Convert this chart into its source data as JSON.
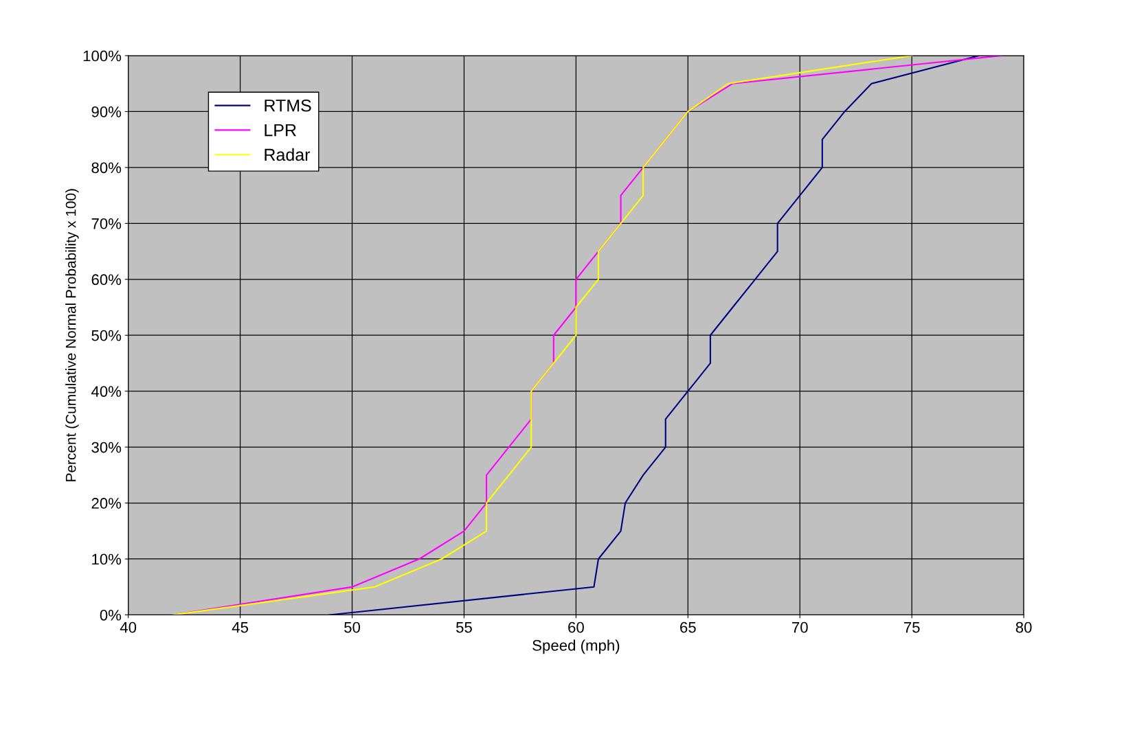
{
  "chart_data": {
    "type": "line",
    "xlabel": "Speed (mph)",
    "ylabel": "Percent (Cumulative Normal Probability x 100)",
    "series": [
      {
        "name": "RTMS",
        "color": "#000080",
        "x": [
          49,
          60.8,
          61,
          62,
          62.2,
          63,
          64,
          64,
          65,
          66,
          66,
          67,
          68,
          69,
          69,
          70,
          71,
          71,
          72,
          73.2,
          78
        ],
        "values": [
          0,
          5,
          10,
          15,
          20,
          25,
          30,
          35,
          40,
          45,
          50,
          55,
          60,
          65,
          70,
          75,
          80,
          85,
          90,
          95,
          100
        ]
      },
      {
        "name": "LPR",
        "color": "#ff00ff",
        "x": [
          42,
          50,
          53,
          55,
          56,
          56,
          57,
          58,
          58,
          59,
          59,
          60,
          60,
          61,
          62,
          62,
          63,
          64,
          65,
          67,
          79
        ],
        "values": [
          0,
          5,
          10,
          15,
          20,
          25,
          30,
          35,
          40,
          45,
          50,
          55,
          60,
          65,
          70,
          75,
          80,
          85,
          90,
          95,
          100
        ]
      },
      {
        "name": "Radar",
        "color": "#ffff00",
        "x": [
          42,
          51,
          54,
          56,
          56,
          57,
          58,
          58,
          59,
          60,
          60,
          61,
          61,
          62,
          63,
          63,
          64,
          65,
          66.8,
          75
        ],
        "values": [
          0,
          5,
          10,
          15,
          20,
          25,
          30,
          40,
          45,
          50,
          55,
          60,
          65,
          70,
          75,
          80,
          85,
          90,
          95,
          100
        ]
      }
    ],
    "xlim": [
      40,
      80
    ],
    "xticks": [
      40,
      45,
      50,
      55,
      60,
      65,
      70,
      75,
      80
    ],
    "ylim": [
      0,
      100
    ],
    "yticks": [
      {
        "value": 0,
        "label": "0%"
      },
      {
        "value": 10,
        "label": "10%"
      },
      {
        "value": 20,
        "label": "20%"
      },
      {
        "value": 30,
        "label": "30%"
      },
      {
        "value": 40,
        "label": "40%"
      },
      {
        "value": 50,
        "label": "50%"
      },
      {
        "value": 60,
        "label": "60%"
      },
      {
        "value": 70,
        "label": "70%"
      },
      {
        "value": 80,
        "label": "80%"
      },
      {
        "value": 90,
        "label": "90%"
      },
      {
        "value": 100,
        "label": "100%"
      }
    ],
    "grid": true,
    "legend": "top left",
    "marker": "none",
    "line_style": "solid"
  }
}
